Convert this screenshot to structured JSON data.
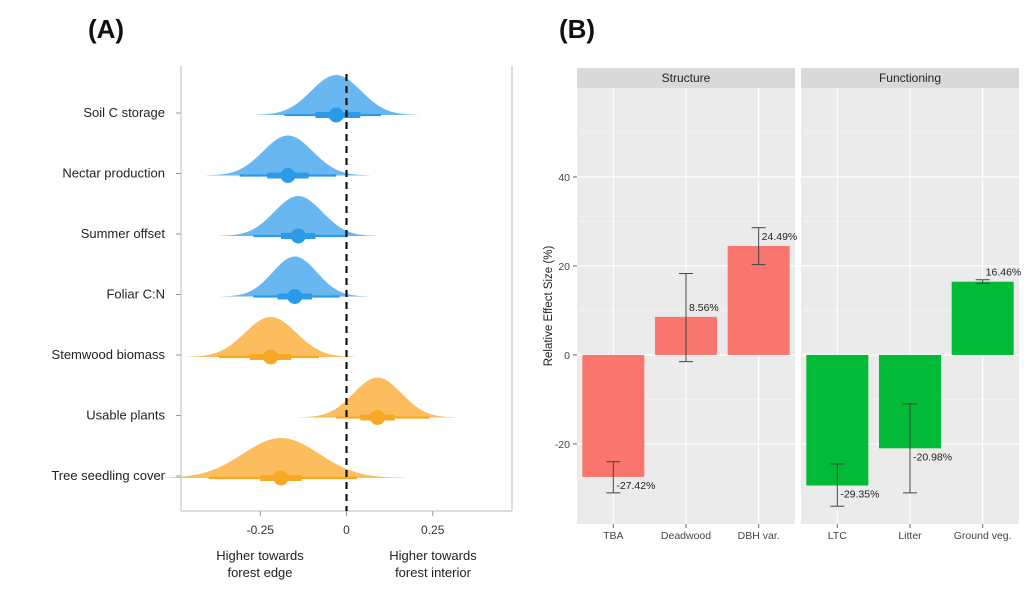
{
  "panels": {
    "a_label": "(A)",
    "b_label": "(B)"
  },
  "colors": {
    "blue": "#2b9be9",
    "blue_light": "#a8d6f7",
    "orange": "#f9a825",
    "orange_light": "#fcd49a",
    "red_bar": "#f8766d",
    "green_bar": "#00ba38",
    "panel_bg": "#ebebeb",
    "strip_bg": "#d9d9d9"
  },
  "chart_data": [
    {
      "type": "scatter",
      "subtype": "density-halfeye",
      "categories": [
        "Soil C storage",
        "Nectar production",
        "Summer offset",
        "Foliar C:N",
        "Stemwood biomass",
        "Usable plants",
        "Tree seedling cover"
      ],
      "means": [
        -0.03,
        -0.17,
        -0.14,
        -0.15,
        -0.22,
        0.09,
        -0.19
      ],
      "inner_ci": [
        [
          -0.09,
          0.04
        ],
        [
          -0.23,
          -0.11
        ],
        [
          -0.19,
          -0.09
        ],
        [
          -0.2,
          -0.1
        ],
        [
          -0.28,
          -0.16
        ],
        [
          0.04,
          0.14
        ],
        [
          -0.25,
          -0.13
        ]
      ],
      "outer_ci": [
        [
          -0.18,
          0.1
        ],
        [
          -0.31,
          -0.03
        ],
        [
          -0.27,
          0.0
        ],
        [
          -0.27,
          -0.02
        ],
        [
          -0.37,
          -0.08
        ],
        [
          -0.03,
          0.24
        ],
        [
          -0.4,
          0.03
        ]
      ],
      "groups": [
        "blue",
        "blue",
        "blue",
        "blue",
        "orange",
        "orange",
        "orange"
      ],
      "x_ticks": [
        "-0.25",
        "0",
        "0.25"
      ],
      "x_tick_values": [
        -0.25,
        0,
        0.25
      ],
      "xlim": [
        -0.48,
        0.48
      ],
      "left_note": [
        "Higher towards",
        "forest edge"
      ],
      "right_note": [
        "Higher towards",
        "forest interior"
      ]
    },
    {
      "type": "bar",
      "ylabel": "Relative Effect Size (%)",
      "ylim": [
        -38,
        60
      ],
      "y_ticks": [
        -20,
        0,
        20,
        40
      ],
      "facets": [
        {
          "title": "Structure",
          "categories": [
            "TBA",
            "Deadwood",
            "DBH var."
          ],
          "values": [
            -27.42,
            8.56,
            24.49
          ],
          "labels": [
            "-27.42%",
            "8.56%",
            "24.49%"
          ],
          "err_low": [
            -31,
            -1.5,
            20.3
          ],
          "err_high": [
            -24,
            18.3,
            28.6
          ],
          "color": "red_bar"
        },
        {
          "title": "Functioning",
          "categories": [
            "LTC",
            "Litter",
            "Ground veg."
          ],
          "values": [
            -29.35,
            -20.98,
            16.46
          ],
          "labels": [
            "-29.35%",
            "-20.98%",
            "16.46%"
          ],
          "err_low": [
            -34,
            -31,
            16.1
          ],
          "err_high": [
            -24.5,
            -11,
            16.9
          ],
          "color": "green_bar"
        }
      ]
    }
  ]
}
